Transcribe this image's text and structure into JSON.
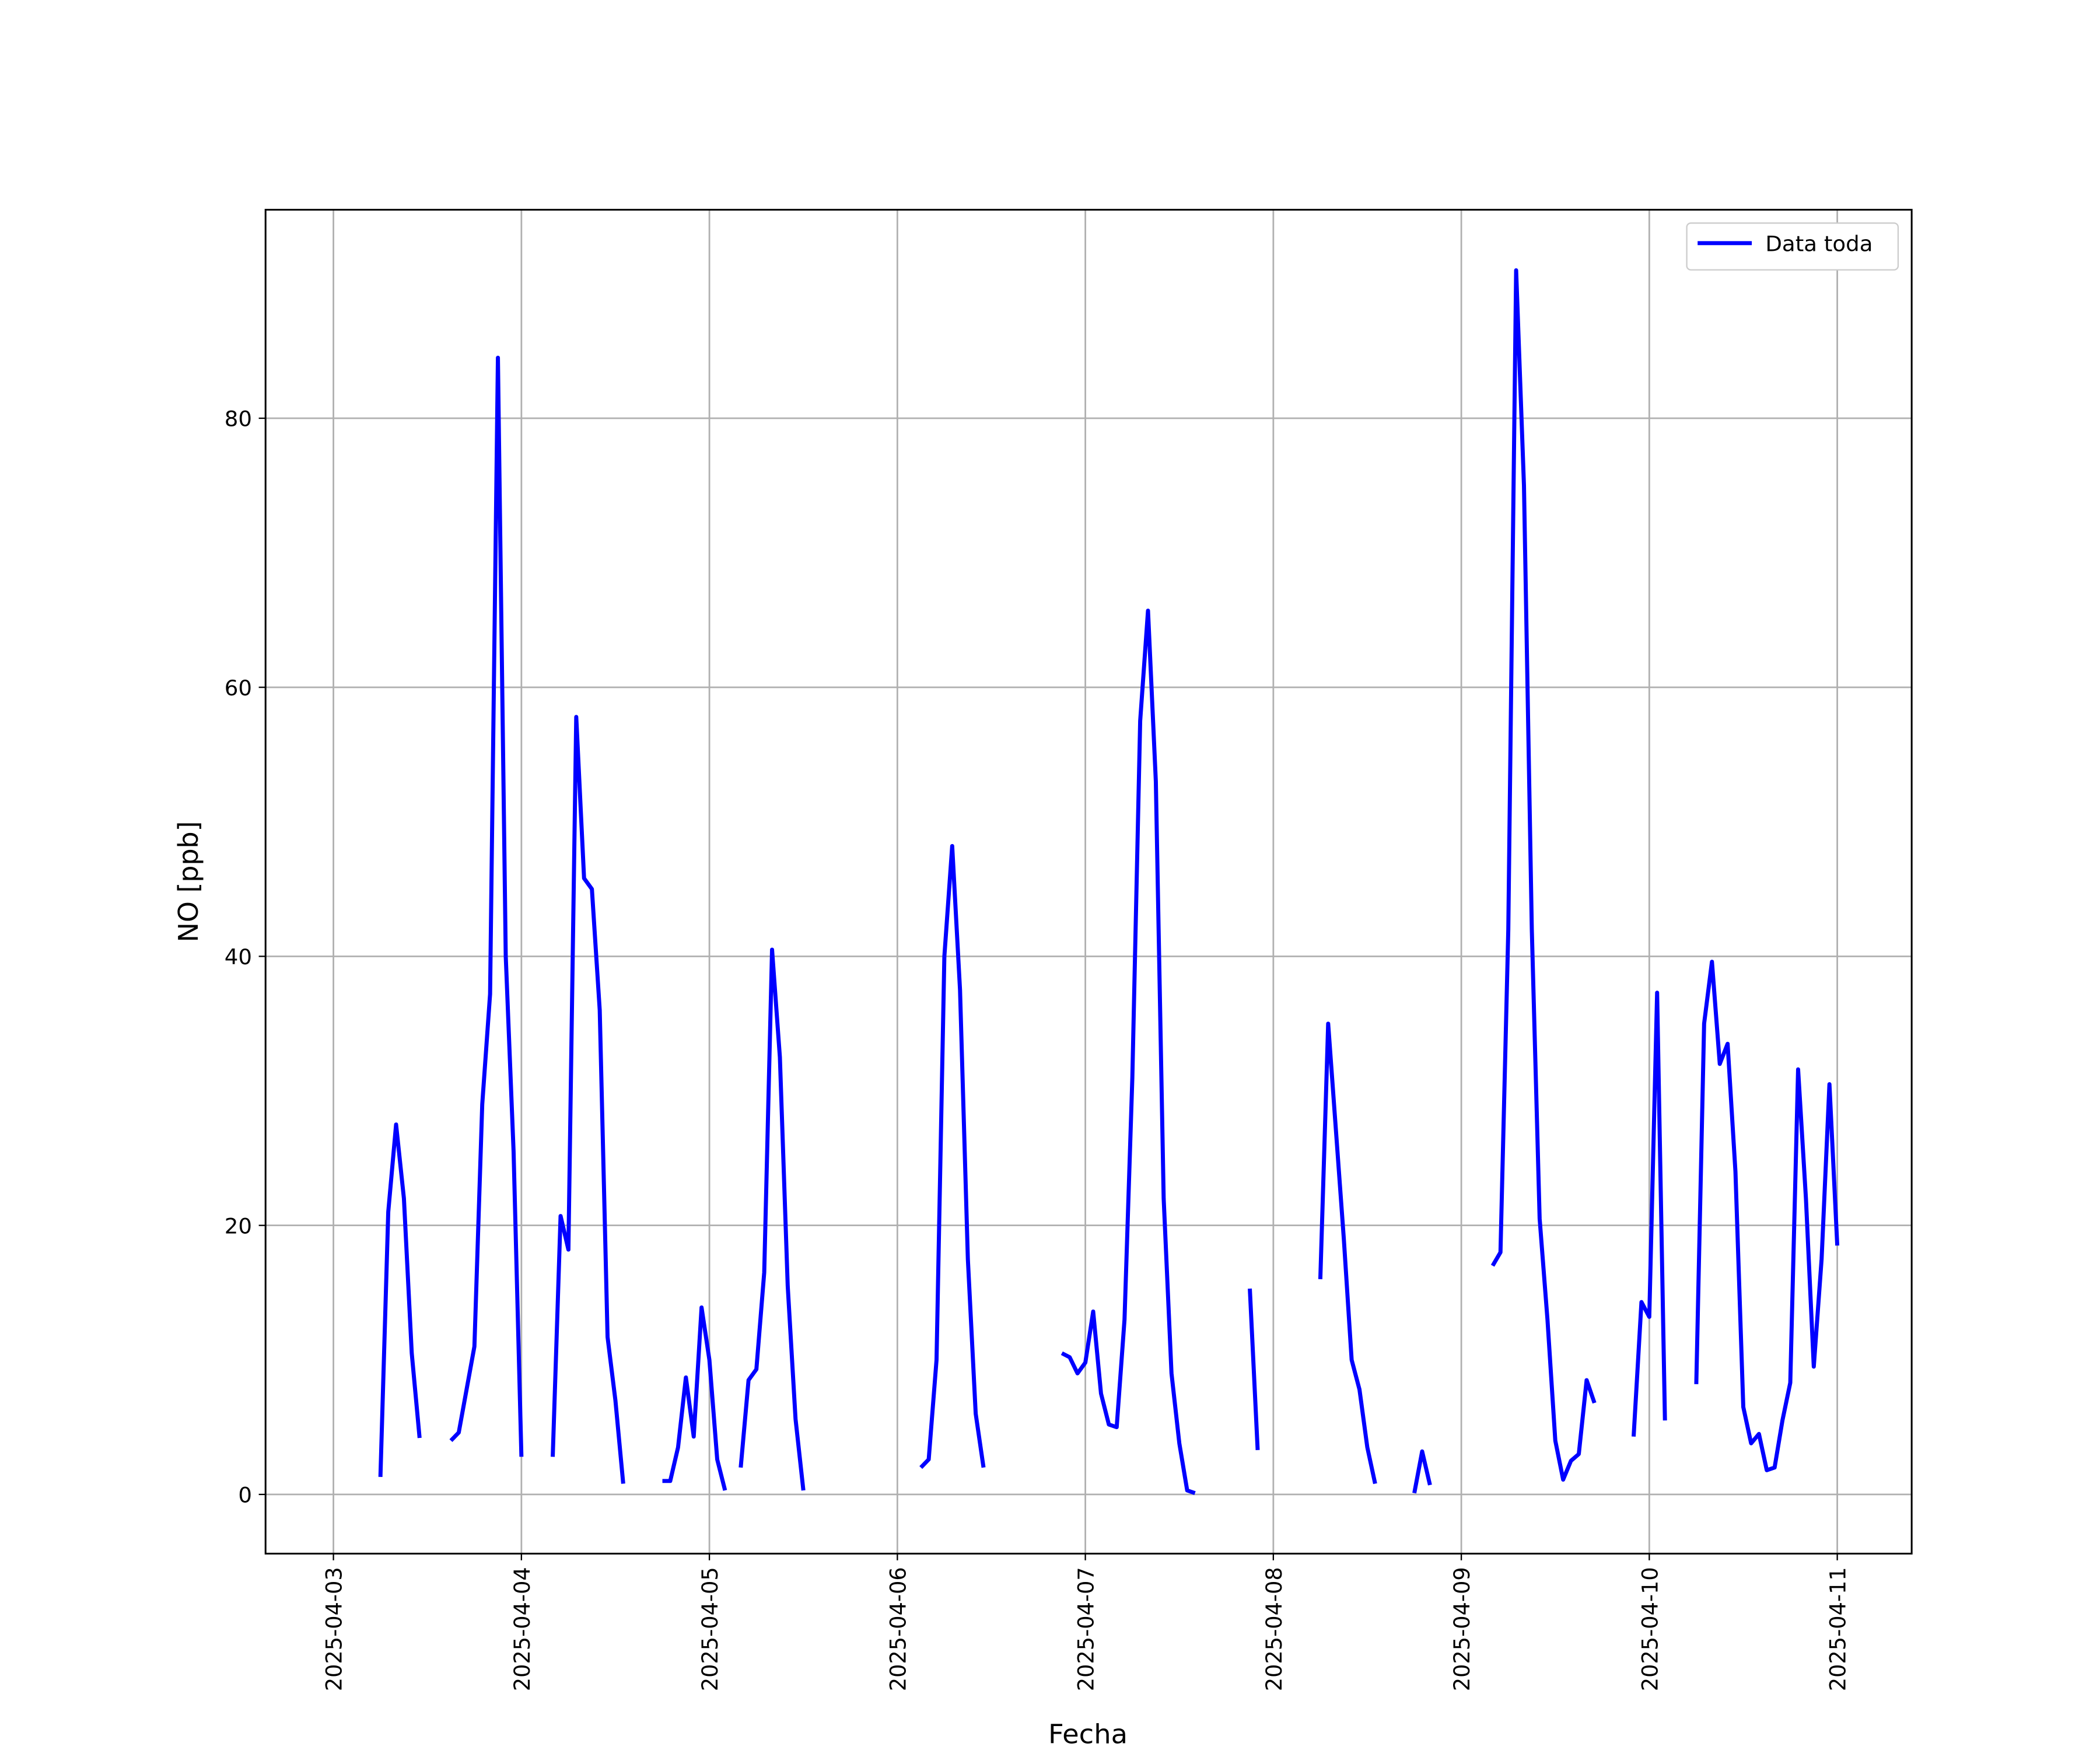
{
  "chart_data": {
    "type": "line",
    "xlabel": "Fecha",
    "ylabel": "NO [ppb]",
    "xlim": [
      "2025-04-02T15:20",
      "2025-04-11T09:30"
    ],
    "ylim": [
      -4.4,
      95.5
    ],
    "xticks": [
      "2025-04-03",
      "2025-04-04",
      "2025-04-05",
      "2025-04-06",
      "2025-04-07",
      "2025-04-08",
      "2025-04-09",
      "2025-04-10",
      "2025-04-11"
    ],
    "yticks": [
      0,
      20,
      40,
      60,
      80
    ],
    "grid": true,
    "legend": "upper right",
    "x": [
      "2025-04-03T06:00",
      "2025-04-03T07:00",
      "2025-04-03T08:00",
      "2025-04-03T09:00",
      "2025-04-03T10:00",
      "2025-04-03T11:00",
      "2025-04-03T12:00",
      "2025-04-03T15:00",
      "2025-04-03T16:00",
      "2025-04-03T17:00",
      "2025-04-03T18:00",
      "2025-04-03T19:00",
      "2025-04-03T20:00",
      "2025-04-03T21:00",
      "2025-04-03T22:00",
      "2025-04-03T23:00",
      "2025-04-04T00:00",
      "2025-04-04T01:00",
      "2025-04-04T04:00",
      "2025-04-04T05:00",
      "2025-04-04T06:00",
      "2025-04-04T07:00",
      "2025-04-04T08:00",
      "2025-04-04T09:00",
      "2025-04-04T10:00",
      "2025-04-04T11:00",
      "2025-04-04T12:00",
      "2025-04-04T13:00",
      "2025-04-04T14:00",
      "2025-04-04T18:00",
      "2025-04-04T19:00",
      "2025-04-04T20:00",
      "2025-04-04T21:00",
      "2025-04-04T22:00",
      "2025-04-04T23:00",
      "2025-04-05T00:00",
      "2025-04-05T01:00",
      "2025-04-05T02:00",
      "2025-04-05T03:00",
      "2025-04-05T04:00",
      "2025-04-05T05:00",
      "2025-04-05T06:00",
      "2025-04-05T07:00",
      "2025-04-05T08:00",
      "2025-04-05T09:00",
      "2025-04-05T10:00",
      "2025-04-05T11:00",
      "2025-04-05T12:00",
      "2025-04-05T13:00",
      "2025-04-06T03:00",
      "2025-04-06T04:00",
      "2025-04-06T05:00",
      "2025-04-06T06:00",
      "2025-04-06T07:00",
      "2025-04-06T08:00",
      "2025-04-06T09:00",
      "2025-04-06T10:00",
      "2025-04-06T11:00",
      "2025-04-06T12:00",
      "2025-04-06T21:00",
      "2025-04-06T22:00",
      "2025-04-06T23:00",
      "2025-04-07T00:00",
      "2025-04-07T01:00",
      "2025-04-07T02:00",
      "2025-04-07T03:00",
      "2025-04-07T04:00",
      "2025-04-07T05:00",
      "2025-04-07T06:00",
      "2025-04-07T07:00",
      "2025-04-07T08:00",
      "2025-04-07T09:00",
      "2025-04-07T10:00",
      "2025-04-07T11:00",
      "2025-04-07T12:00",
      "2025-04-07T13:00",
      "2025-04-07T14:00",
      "2025-04-07T15:00",
      "2025-04-07T21:00",
      "2025-04-07T22:00",
      "2025-04-07T23:00",
      "2025-04-08T06:00",
      "2025-04-08T07:00",
      "2025-04-08T08:00",
      "2025-04-08T09:00",
      "2025-04-08T10:00",
      "2025-04-08T11:00",
      "2025-04-08T12:00",
      "2025-04-08T13:00",
      "2025-04-08T14:00",
      "2025-04-08T18:00",
      "2025-04-08T19:00",
      "2025-04-08T20:00",
      "2025-04-08T21:00",
      "2025-04-09T04:00",
      "2025-04-09T05:00",
      "2025-04-09T06:00",
      "2025-04-09T07:00",
      "2025-04-09T08:00",
      "2025-04-09T09:00",
      "2025-04-09T10:00",
      "2025-04-09T11:00",
      "2025-04-09T12:00",
      "2025-04-09T13:00",
      "2025-04-09T14:00",
      "2025-04-09T15:00",
      "2025-04-09T16:00",
      "2025-04-09T17:00",
      "2025-04-09T18:00",
      "2025-04-09T22:00",
      "2025-04-09T23:00",
      "2025-04-10T00:00",
      "2025-04-10T01:00",
      "2025-04-10T02:00",
      "2025-04-10T03:00",
      "2025-04-10T06:00",
      "2025-04-10T07:00",
      "2025-04-10T08:00",
      "2025-04-10T09:00",
      "2025-04-10T10:00",
      "2025-04-10T11:00",
      "2025-04-10T12:00",
      "2025-04-10T13:00",
      "2025-04-10T14:00",
      "2025-04-10T15:00",
      "2025-04-10T16:00",
      "2025-04-10T17:00",
      "2025-04-10T18:00",
      "2025-04-10T19:00",
      "2025-04-10T20:00",
      "2025-04-10T21:00",
      "2025-04-10T22:00",
      "2025-04-10T23:00",
      "2025-04-11T00:00"
    ],
    "series": [
      {
        "name": "Data toda",
        "color": "#0000ff",
        "values": [
          1.3,
          21,
          27.5,
          22,
          10.5,
          4.2,
          null,
          4,
          4.6,
          7.8,
          11,
          29,
          37.2,
          84.5,
          40,
          25.5,
          2.8,
          null,
          2.8,
          20.7,
          18.2,
          57.8,
          45.8,
          45,
          36,
          11.7,
          7,
          0.8,
          null,
          1,
          1,
          3.5,
          8.7,
          4.3,
          13.9,
          10,
          2.6,
          0.3,
          null,
          2,
          8.5,
          9.3,
          16.5,
          40.5,
          32.5,
          15.5,
          5.6,
          0.3,
          null,
          2,
          2.6,
          10,
          40,
          48.2,
          37.5,
          17.5,
          6,
          2,
          null,
          10.5,
          10.2,
          9,
          9.8,
          13.6,
          7.5,
          5.2,
          5,
          13,
          31,
          57.5,
          65.7,
          53,
          22,
          9,
          3.8,
          0.3,
          0.1,
          null,
          15.3,
          3.3,
          null,
          16,
          35,
          27,
          19,
          10,
          7.8,
          3.5,
          0.8,
          null,
          0.1,
          3.2,
          0.7,
          null,
          17,
          18,
          42,
          91,
          75,
          42,
          20.5,
          13,
          4,
          1.1,
          2.5,
          3,
          8.5,
          6.8,
          null,
          4.3,
          14.3,
          13.2,
          37.3,
          5.5,
          null,
          8.2,
          35,
          39.6,
          32,
          33.5,
          24,
          6.5,
          3.8,
          4.5,
          1.8,
          2,
          5.5,
          8.3,
          31.6,
          22,
          9.5,
          17.5,
          30.5,
          18.5
        ]
      }
    ]
  }
}
